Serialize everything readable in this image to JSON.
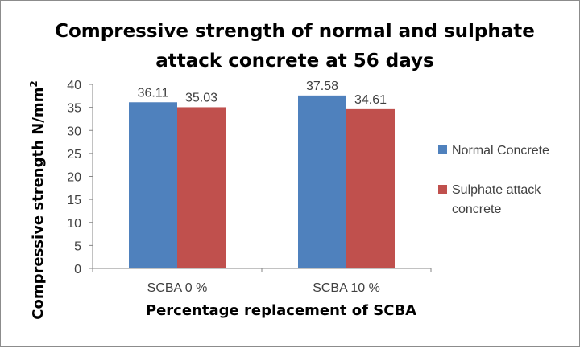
{
  "chart_data": {
    "type": "bar",
    "title_lines": [
      "Compressive strength of normal and sulphate",
      "attack concrete at 56 days"
    ],
    "categories": [
      "SCBA 0 %",
      "SCBA 10 %"
    ],
    "series": [
      {
        "name": "Normal Concrete",
        "values": [
          36.11,
          37.58
        ],
        "color": "#4f81bd"
      },
      {
        "name": "Sulphate attack concrete",
        "legend_lines": [
          "Sulphate attack",
          "concrete"
        ],
        "values": [
          35.03,
          34.61
        ],
        "color": "#c0504d"
      }
    ],
    "data_labels": [
      [
        "36.11",
        "37.58"
      ],
      [
        "35.03",
        "34.61"
      ]
    ],
    "xlabel": "Percentage replacement of SCBA",
    "ylabel": "Compressive strength N/mm",
    "ylabel_superscript": "2",
    "ylim": [
      0,
      40
    ],
    "yticks": [
      "0",
      "5",
      "10",
      "15",
      "20",
      "25",
      "30",
      "35",
      "40"
    ],
    "gridlines": false,
    "legend_position": "right"
  }
}
